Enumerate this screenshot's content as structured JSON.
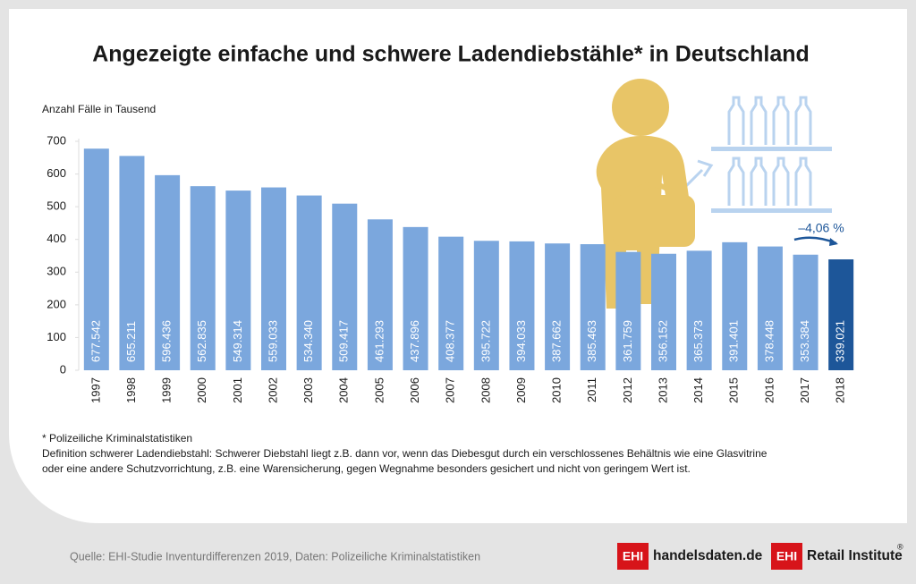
{
  "chart_data": {
    "type": "bar",
    "title": "Angezeigte einfache und schwere Ladendiebstähle* in Deutschland",
    "y_label": "Anzahl Fälle in Tausend",
    "categories": [
      "1997",
      "1998",
      "1999",
      "2000",
      "2001",
      "2002",
      "2003",
      "2004",
      "2005",
      "2006",
      "2007",
      "2008",
      "2009",
      "2010",
      "2011",
      "2012",
      "2013",
      "2014",
      "2015",
      "2016",
      "2017",
      "2018"
    ],
    "values": [
      677.542,
      655.211,
      596.436,
      562.835,
      549.314,
      559.033,
      534.34,
      509.417,
      461.293,
      437.896,
      408.377,
      395.722,
      394.033,
      387.662,
      385.463,
      361.759,
      356.152,
      365.373,
      391.401,
      378.448,
      353.384,
      339.021
    ],
    "value_labels": [
      "677.542",
      "655.211",
      "596.436",
      "562.835",
      "549.314",
      "559.033",
      "534.340",
      "509.417",
      "461.293",
      "437.896",
      "408.377",
      "395.722",
      "394.033",
      "387.662",
      "385.463",
      "361.759",
      "356.152",
      "365.373",
      "391.401",
      "378.448",
      "353.384",
      "339.021"
    ],
    "colors": [
      "#7ba7dd",
      "#7ba7dd",
      "#7ba7dd",
      "#7ba7dd",
      "#7ba7dd",
      "#7ba7dd",
      "#7ba7dd",
      "#7ba7dd",
      "#7ba7dd",
      "#7ba7dd",
      "#7ba7dd",
      "#7ba7dd",
      "#7ba7dd",
      "#7ba7dd",
      "#7ba7dd",
      "#7ba7dd",
      "#7ba7dd",
      "#7ba7dd",
      "#7ba7dd",
      "#7ba7dd",
      "#7ba7dd",
      "#1d5699"
    ],
    "ylim": [
      0,
      700
    ],
    "yticks": [
      0,
      100,
      200,
      300,
      400,
      500,
      600,
      700
    ],
    "grid": false,
    "annotation": "–4,06 %",
    "footnotes": [
      "* Polizeiliche Kriminalstatistiken",
      "Definition schwerer Ladendiebstahl: Schwerer Diebstahl liegt z.B. dann vor, wenn das Diebesgut durch ein verschlossenes Behältnis wie eine Glasvitrine",
      "oder eine andere Schutzvorrichtung, z.B. eine Warensicherung, gegen Wegnahme besonders gesichert und nicht von geringem Wert ist."
    ],
    "source": "Quelle: EHI-Studie Inventurdifferenzen 2019, Daten: Polizeiliche Kriminalstatistiken",
    "logos": [
      {
        "mark": "EHI",
        "text": "handelsdaten.de"
      },
      {
        "mark": "EHI",
        "text": "Retail Institute",
        "sup": "®"
      }
    ]
  }
}
